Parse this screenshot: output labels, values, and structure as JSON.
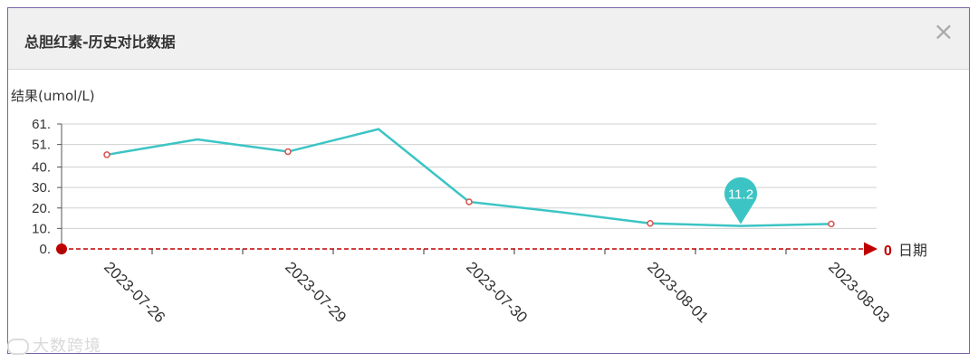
{
  "dialog": {
    "title": "总胆红素-历史对比数据",
    "close_glyph": "×"
  },
  "watermark": "大数跨境",
  "chart_data": {
    "type": "line",
    "ylabel": "结果(umol/L)",
    "xlabel": "日期",
    "origin_label": "0",
    "ylim": [
      0,
      61
    ],
    "yticks": [
      0,
      10,
      20,
      30,
      40,
      51,
      61
    ],
    "ytick_labels": [
      "0.",
      "10.",
      "20.",
      "30.",
      "40.",
      "51.",
      "61."
    ],
    "x_tick_labels": [
      "2023-07-26",
      "2023-07-29",
      "2023-07-30",
      "2023-08-01",
      "2023-08-03"
    ],
    "series": [
      {
        "points": [
          {
            "label": "2023-07-26",
            "value": 46,
            "marker": true
          },
          {
            "label": "",
            "value": 53.5,
            "marker": false
          },
          {
            "label": "2023-07-29",
            "value": 47.5,
            "marker": true
          },
          {
            "label": "",
            "value": 58.5,
            "marker": false
          },
          {
            "label": "2023-07-30",
            "value": 23,
            "marker": true
          },
          {
            "label": "",
            "value": 18,
            "marker": false
          },
          {
            "label": "2023-08-01",
            "value": 12.5,
            "marker": true
          },
          {
            "label": "",
            "value": 11.2,
            "marker": false
          },
          {
            "label": "2023-08-03",
            "value": 12.2,
            "marker": true
          }
        ]
      }
    ],
    "annotation": {
      "point_index": 7,
      "text": "11.2"
    },
    "grid": true,
    "colors": {
      "line": "#3cc4c4",
      "axis": "#c00000",
      "marker": "#d9534f",
      "grid": "#d0d0d0"
    }
  }
}
